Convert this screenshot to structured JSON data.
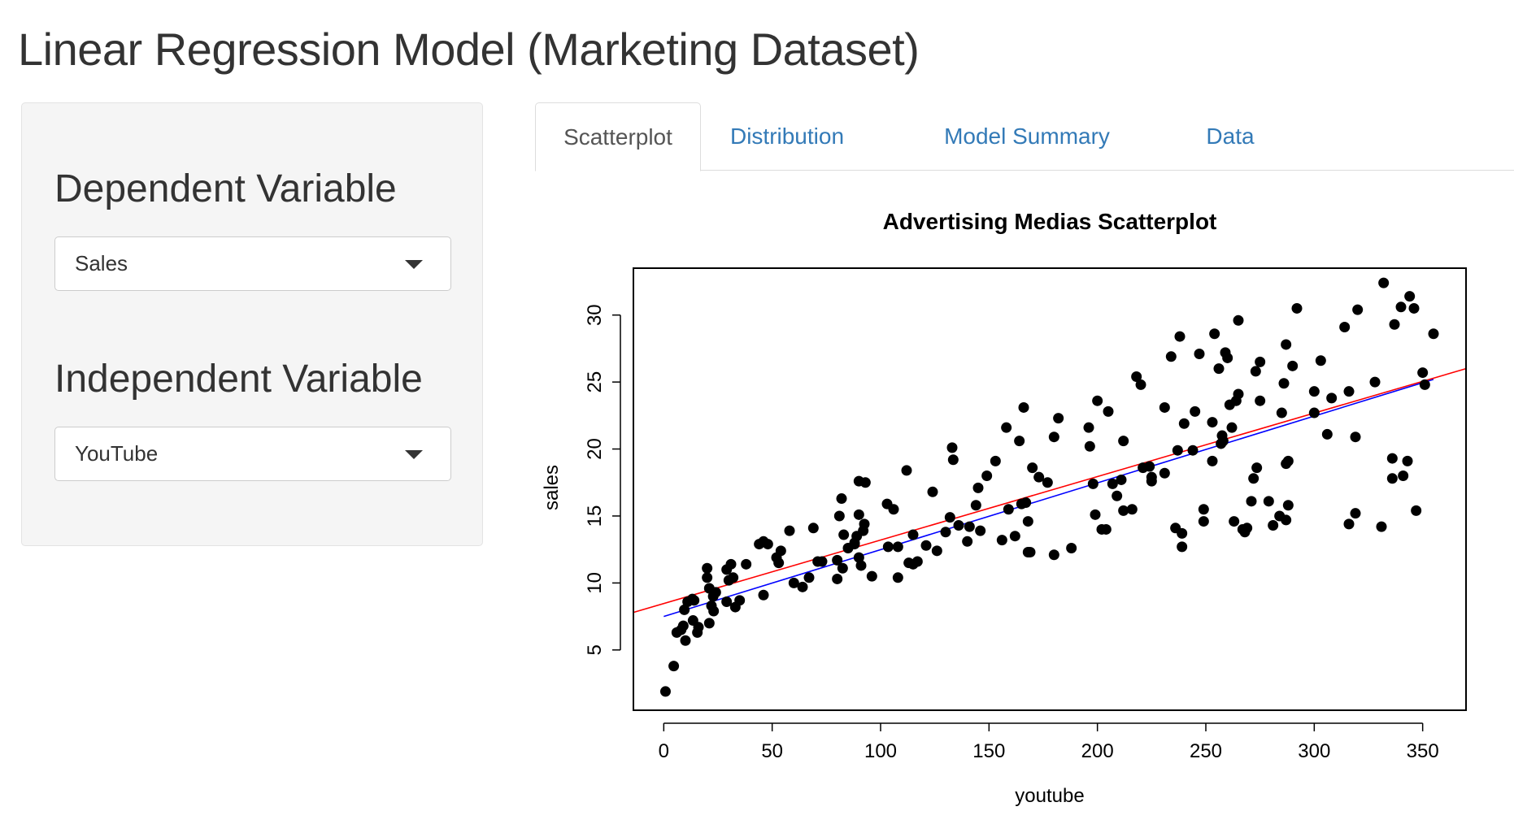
{
  "page": {
    "title": "Linear Regression Model (Marketing Dataset)"
  },
  "sidebar": {
    "dependent_label": "Dependent Variable",
    "dependent_value": "Sales",
    "independent_label": "Independent Variable",
    "independent_value": "YouTube"
  },
  "tabs": [
    {
      "label": "Scatterplot",
      "active": true
    },
    {
      "label": "Distribution",
      "active": false
    },
    {
      "label": "Model Summary",
      "active": false
    },
    {
      "label": "Data",
      "active": false
    }
  ],
  "colors": {
    "link": "#337ab7",
    "fit_line": "#0000ff",
    "smooth_line": "#ff0000",
    "points": "#000000"
  },
  "icons": {
    "select_caret": "caret-down-icon"
  },
  "chart_data": {
    "type": "scatter",
    "title": "Advertising Medias Scatterplot",
    "xlabel": "youtube",
    "ylabel": "sales",
    "xlim": [
      -14,
      370
    ],
    "ylim": [
      0.5,
      33.5
    ],
    "xticks": [
      0,
      50,
      100,
      150,
      200,
      250,
      300,
      350
    ],
    "yticks": [
      5,
      10,
      15,
      20,
      25,
      30
    ],
    "grid": false,
    "legend": "none",
    "lines": [
      {
        "kind": "linear-fit",
        "color": "#0000ff",
        "points": [
          [
            0,
            7.5
          ],
          [
            355,
            25.2
          ]
        ]
      },
      {
        "kind": "smoothed",
        "color": "#ff0000",
        "points": [
          [
            -14,
            7.8
          ],
          [
            370,
            26.0
          ]
        ]
      }
    ],
    "points": [
      [
        0.8,
        1.9
      ],
      [
        4.6,
        3.8
      ],
      [
        6.0,
        6.3
      ],
      [
        8.0,
        6.5
      ],
      [
        9.0,
        6.8
      ],
      [
        10.0,
        5.7
      ],
      [
        9.5,
        8.0
      ],
      [
        11.0,
        8.6
      ],
      [
        14.0,
        8.7
      ],
      [
        13.2,
        8.8
      ],
      [
        13.5,
        7.2
      ],
      [
        15.5,
        6.3
      ],
      [
        16.0,
        6.7
      ],
      [
        21.0,
        7.0
      ],
      [
        22.0,
        8.3
      ],
      [
        23.0,
        7.9
      ],
      [
        22.8,
        9.0
      ],
      [
        21.0,
        9.6
      ],
      [
        24.0,
        9.3
      ],
      [
        20.0,
        10.4
      ],
      [
        20.0,
        11.1
      ],
      [
        29.0,
        11.0
      ],
      [
        30.0,
        10.2
      ],
      [
        32.0,
        10.4
      ],
      [
        31.0,
        11.4
      ],
      [
        29.0,
        8.6
      ],
      [
        33.0,
        8.2
      ],
      [
        35.0,
        8.7
      ],
      [
        38.0,
        11.4
      ],
      [
        44.0,
        12.9
      ],
      [
        46.0,
        13.1
      ],
      [
        48.0,
        12.9
      ],
      [
        46.0,
        9.1
      ],
      [
        52.0,
        11.9
      ],
      [
        53.0,
        11.5
      ],
      [
        54.0,
        12.4
      ],
      [
        58.0,
        13.9
      ],
      [
        60.0,
        10.0
      ],
      [
        64.0,
        9.7
      ],
      [
        67.0,
        10.4
      ],
      [
        69.0,
        14.1
      ],
      [
        71.0,
        11.6
      ],
      [
        73.0,
        11.6
      ],
      [
        80.0,
        10.3
      ],
      [
        80.0,
        11.7
      ],
      [
        81.0,
        15.0
      ],
      [
        82.0,
        16.3
      ],
      [
        83.0,
        13.6
      ],
      [
        82.5,
        11.1
      ],
      [
        85.0,
        12.6
      ],
      [
        88.0,
        13.0
      ],
      [
        88.0,
        12.9
      ],
      [
        89.0,
        13.5
      ],
      [
        90.0,
        15.1
      ],
      [
        90.0,
        17.6
      ],
      [
        90.0,
        11.9
      ],
      [
        91.0,
        11.3
      ],
      [
        92.0,
        13.9
      ],
      [
        92.5,
        14.4
      ],
      [
        93.0,
        17.5
      ],
      [
        96.0,
        10.5
      ],
      [
        103.0,
        15.9
      ],
      [
        103.5,
        12.7
      ],
      [
        106.0,
        15.5
      ],
      [
        108.0,
        12.7
      ],
      [
        108.0,
        10.4
      ],
      [
        112.0,
        18.4
      ],
      [
        113.0,
        11.5
      ],
      [
        115.0,
        11.4
      ],
      [
        115.0,
        13.6
      ],
      [
        117.0,
        11.6
      ],
      [
        121.0,
        12.8
      ],
      [
        124.0,
        16.8
      ],
      [
        126.0,
        12.4
      ],
      [
        130.0,
        13.8
      ],
      [
        132.0,
        14.9
      ],
      [
        133.0,
        20.1
      ],
      [
        133.5,
        19.2
      ],
      [
        136.0,
        14.3
      ],
      [
        140.0,
        13.1
      ],
      [
        141.0,
        14.2
      ],
      [
        144.0,
        15.8
      ],
      [
        145.0,
        17.1
      ],
      [
        146.0,
        13.9
      ],
      [
        149.0,
        18.0
      ],
      [
        153.0,
        19.1
      ],
      [
        156.0,
        13.2
      ],
      [
        158.0,
        21.6
      ],
      [
        159.0,
        15.5
      ],
      [
        162.0,
        13.5
      ],
      [
        164.0,
        20.6
      ],
      [
        165.0,
        15.9
      ],
      [
        166.0,
        23.1
      ],
      [
        167.0,
        16.0
      ],
      [
        168.0,
        14.6
      ],
      [
        168.0,
        12.3
      ],
      [
        169.0,
        12.3
      ],
      [
        170.0,
        18.6
      ],
      [
        173.0,
        17.9
      ],
      [
        177.0,
        17.5
      ],
      [
        180.0,
        20.9
      ],
      [
        180.0,
        12.1
      ],
      [
        182.0,
        22.3
      ],
      [
        188.0,
        12.6
      ],
      [
        196.0,
        21.6
      ],
      [
        196.5,
        20.2
      ],
      [
        198.0,
        17.4
      ],
      [
        199.0,
        15.1
      ],
      [
        200.0,
        23.6
      ],
      [
        202.0,
        14.0
      ],
      [
        204.0,
        14.0
      ],
      [
        205.0,
        22.8
      ],
      [
        207.0,
        17.4
      ],
      [
        209.0,
        16.5
      ],
      [
        211.0,
        17.7
      ],
      [
        212.0,
        15.4
      ],
      [
        212.0,
        20.6
      ],
      [
        216.0,
        15.5
      ],
      [
        218.0,
        25.4
      ],
      [
        220.0,
        24.8
      ],
      [
        221.0,
        18.6
      ],
      [
        224.0,
        18.7
      ],
      [
        225.0,
        17.6
      ],
      [
        225.0,
        17.9
      ],
      [
        231.0,
        18.2
      ],
      [
        231.0,
        23.1
      ],
      [
        234.0,
        26.9
      ],
      [
        236.0,
        14.1
      ],
      [
        237.0,
        19.9
      ],
      [
        238.0,
        28.4
      ],
      [
        239.0,
        13.7
      ],
      [
        239.0,
        12.7
      ],
      [
        240.0,
        21.9
      ],
      [
        244.0,
        19.9
      ],
      [
        245.0,
        22.8
      ],
      [
        247.0,
        27.1
      ],
      [
        249.0,
        15.5
      ],
      [
        249.0,
        14.6
      ],
      [
        253.0,
        22.0
      ],
      [
        253.0,
        19.1
      ],
      [
        254.0,
        28.6
      ],
      [
        256.0,
        26.0
      ],
      [
        257.0,
        20.4
      ],
      [
        257.5,
        21.0
      ],
      [
        258.0,
        20.6
      ],
      [
        259.0,
        27.2
      ],
      [
        260.0,
        26.8
      ],
      [
        261.0,
        23.3
      ],
      [
        262.0,
        21.6
      ],
      [
        263.0,
        14.6
      ],
      [
        264.0,
        23.6
      ],
      [
        265.0,
        29.6
      ],
      [
        265.0,
        24.1
      ],
      [
        267.0,
        14.0
      ],
      [
        268.0,
        13.8
      ],
      [
        269.0,
        14.1
      ],
      [
        271.0,
        16.1
      ],
      [
        272.0,
        17.8
      ],
      [
        273.0,
        25.8
      ],
      [
        273.5,
        18.6
      ],
      [
        275.0,
        26.5
      ],
      [
        275.0,
        23.6
      ],
      [
        279.0,
        16.1
      ],
      [
        281.0,
        14.3
      ],
      [
        284.0,
        15.0
      ],
      [
        285.0,
        22.7
      ],
      [
        286.0,
        24.9
      ],
      [
        287.0,
        14.7
      ],
      [
        287.0,
        27.8
      ],
      [
        287.0,
        18.9
      ],
      [
        288.0,
        19.1
      ],
      [
        288.0,
        15.8
      ],
      [
        290.0,
        26.2
      ],
      [
        292.0,
        30.5
      ],
      [
        300.0,
        24.3
      ],
      [
        300.0,
        22.7
      ],
      [
        303.0,
        26.6
      ],
      [
        306.0,
        21.1
      ],
      [
        308.0,
        23.8
      ],
      [
        314.0,
        29.1
      ],
      [
        316.0,
        24.3
      ],
      [
        316.0,
        14.4
      ],
      [
        319.0,
        15.2
      ],
      [
        319.0,
        20.9
      ],
      [
        320.0,
        30.4
      ],
      [
        328.0,
        25.0
      ],
      [
        331.0,
        14.2
      ],
      [
        332.0,
        32.4
      ],
      [
        336.0,
        19.3
      ],
      [
        336.0,
        17.8
      ],
      [
        337.0,
        29.3
      ],
      [
        340.0,
        30.6
      ],
      [
        341.0,
        18.0
      ],
      [
        343.0,
        19.1
      ],
      [
        344.0,
        31.4
      ],
      [
        346.0,
        30.5
      ],
      [
        347.0,
        15.4
      ],
      [
        350.0,
        25.7
      ],
      [
        351.0,
        24.8
      ],
      [
        355.0,
        28.6
      ]
    ]
  }
}
